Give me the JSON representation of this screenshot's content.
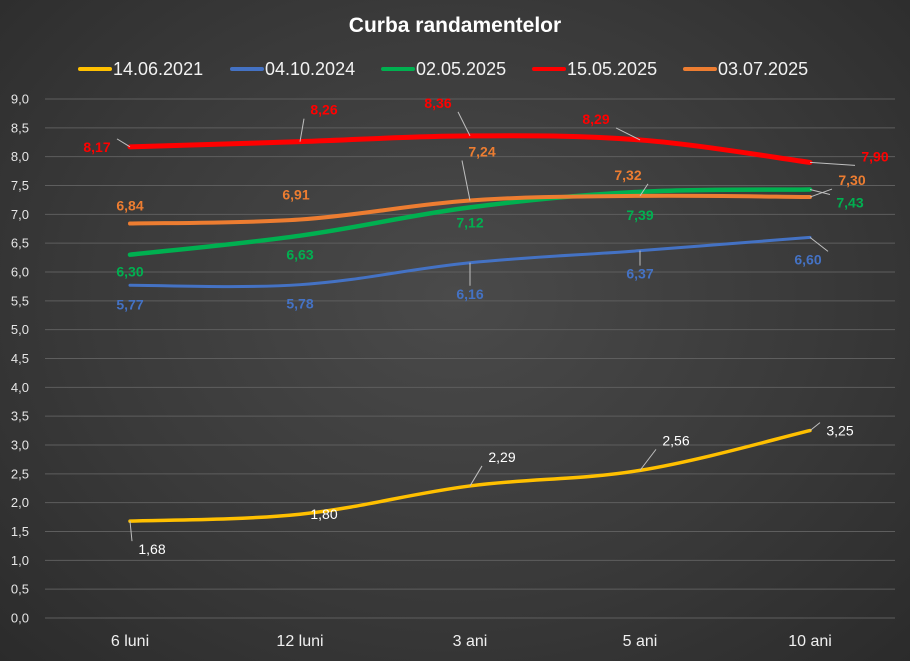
{
  "chart_data": {
    "type": "line",
    "title": "Curba randamentelor",
    "categories": [
      "6 luni",
      "12 luni",
      "3 ani",
      "5 ani",
      "10 ani"
    ],
    "ylim": [
      0,
      9
    ],
    "ytick_step": 0.5,
    "ytick_labels": [
      "0,0",
      "0,5",
      "1,0",
      "1,5",
      "2,0",
      "2,5",
      "3,0",
      "3,5",
      "4,0",
      "4,5",
      "5,0",
      "5,5",
      "6,0",
      "6,5",
      "7,0",
      "7,5",
      "8,0",
      "8,5",
      "9,0"
    ],
    "grid": true,
    "legend_position": "top",
    "series": [
      {
        "name": "14.06.2021",
        "color": "#ffc000",
        "label_color": "#ffffff",
        "values": [
          1.68,
          1.8,
          2.29,
          2.56,
          3.25
        ],
        "labels": [
          "1,68",
          "1,80",
          "2,29",
          "2,56",
          "3,25"
        ]
      },
      {
        "name": "04.10.2024",
        "color": "#4472c4",
        "label_color": "#4472c4",
        "values": [
          5.77,
          5.78,
          6.16,
          6.37,
          6.6
        ],
        "labels": [
          "5,77",
          "5,78",
          "6,16",
          "6,37",
          "6,60"
        ]
      },
      {
        "name": "02.05.2025",
        "color": "#00b050",
        "label_color": "#00b050",
        "values": [
          6.3,
          6.63,
          7.12,
          7.39,
          7.43
        ],
        "labels": [
          "6,30",
          "6,63",
          "7,12",
          "7,39",
          "7,43"
        ]
      },
      {
        "name": "15.05.2025",
        "color": "#ff0000",
        "label_color": "#ff0000",
        "values": [
          8.17,
          8.26,
          8.36,
          8.29,
          7.9
        ],
        "labels": [
          "8,17",
          "8,26",
          "8,36",
          "8,29",
          "7,90"
        ]
      },
      {
        "name": "03.07.2025",
        "color": "#ed7d31",
        "label_color": "#ed7d31",
        "values": [
          6.84,
          6.91,
          7.24,
          7.32,
          7.3
        ],
        "labels": [
          "6,84",
          "6,91",
          "7,24",
          "7,32",
          "7,30"
        ]
      }
    ]
  }
}
